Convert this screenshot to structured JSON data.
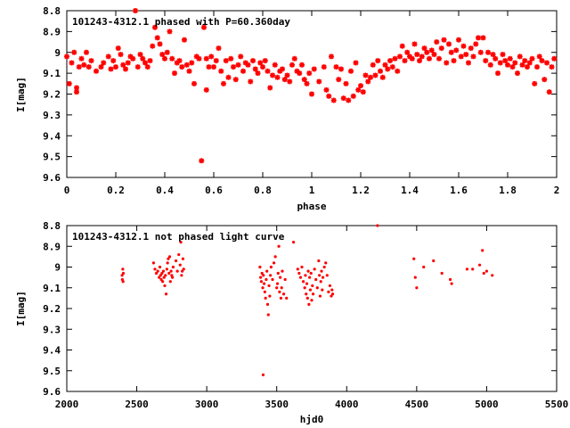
{
  "chart_data": [
    {
      "type": "scatter",
      "title": "101243-4312.1 phased with P=60.360day",
      "xlabel": "phase",
      "ylabel": "I[mag]",
      "xlim": [
        0,
        2
      ],
      "ylim": [
        9.6,
        8.8
      ],
      "y_inverted": true,
      "xticks": [
        0,
        0.2,
        0.4,
        0.6,
        0.8,
        1,
        1.2,
        1.4,
        1.6,
        1.8,
        2
      ],
      "xtick_labels": [
        "0",
        "0.2",
        "0.4",
        "0.6",
        "0.8",
        "1",
        "1.2",
        "1.4",
        "1.6",
        "1.8",
        "2"
      ],
      "yticks": [
        8.8,
        8.9,
        9,
        9.1,
        9.2,
        9.3,
        9.4,
        9.5,
        9.6
      ],
      "ytick_labels": [
        "8.8",
        "8.9",
        "9",
        "9.1",
        "9.2",
        "9.3",
        "9.4",
        "9.5",
        "9.6"
      ],
      "grid": false,
      "marker_color": "#ff0000",
      "marker": "star",
      "points": [
        [
          0.0,
          9.02
        ],
        [
          0.01,
          9.15
        ],
        [
          0.02,
          9.05
        ],
        [
          0.03,
          9.0
        ],
        [
          0.04,
          9.17
        ],
        [
          0.04,
          9.19
        ],
        [
          0.05,
          9.07
        ],
        [
          0.06,
          9.03
        ],
        [
          0.07,
          9.06
        ],
        [
          0.08,
          9.0
        ],
        [
          0.09,
          9.07
        ],
        [
          0.1,
          9.04
        ],
        [
          0.12,
          9.09
        ],
        [
          0.14,
          9.07
        ],
        [
          0.15,
          9.05
        ],
        [
          0.17,
          9.02
        ],
        [
          0.18,
          9.08
        ],
        [
          0.19,
          9.04
        ],
        [
          0.2,
          9.07
        ],
        [
          0.21,
          8.98
        ],
        [
          0.22,
          9.01
        ],
        [
          0.23,
          9.06
        ],
        [
          0.24,
          9.08
        ],
        [
          0.25,
          9.05
        ],
        [
          0.26,
          9.02
        ],
        [
          0.27,
          9.03
        ],
        [
          0.28,
          8.8
        ],
        [
          0.29,
          9.07
        ],
        [
          0.3,
          9.01
        ],
        [
          0.31,
          9.03
        ],
        [
          0.32,
          9.05
        ],
        [
          0.33,
          9.07
        ],
        [
          0.34,
          9.04
        ],
        [
          0.35,
          8.97
        ],
        [
          0.36,
          8.88
        ],
        [
          0.37,
          8.93
        ],
        [
          0.38,
          8.96
        ],
        [
          0.39,
          9.01
        ],
        [
          0.4,
          9.03
        ],
        [
          0.41,
          9.0
        ],
        [
          0.42,
          8.9
        ],
        [
          0.43,
          9.03
        ],
        [
          0.44,
          9.1
        ],
        [
          0.45,
          9.05
        ],
        [
          0.46,
          9.04
        ],
        [
          0.47,
          9.07
        ],
        [
          0.48,
          8.94
        ],
        [
          0.49,
          9.06
        ],
        [
          0.5,
          9.09
        ],
        [
          0.51,
          9.05
        ],
        [
          0.52,
          9.15
        ],
        [
          0.53,
          9.02
        ],
        [
          0.54,
          9.03
        ],
        [
          0.55,
          9.52
        ],
        [
          0.56,
          8.88
        ],
        [
          0.57,
          9.03
        ],
        [
          0.57,
          9.18
        ],
        [
          0.58,
          9.07
        ],
        [
          0.59,
          9.02
        ],
        [
          0.6,
          9.07
        ],
        [
          0.61,
          9.04
        ],
        [
          0.62,
          8.98
        ],
        [
          0.63,
          9.09
        ],
        [
          0.64,
          9.15
        ],
        [
          0.65,
          9.04
        ],
        [
          0.66,
          9.12
        ],
        [
          0.67,
          9.03
        ],
        [
          0.68,
          9.07
        ],
        [
          0.69,
          9.13
        ],
        [
          0.7,
          9.06
        ],
        [
          0.71,
          9.02
        ],
        [
          0.72,
          9.09
        ],
        [
          0.73,
          9.05
        ],
        [
          0.74,
          9.06
        ],
        [
          0.75,
          9.14
        ],
        [
          0.76,
          9.04
        ],
        [
          0.77,
          9.08
        ],
        [
          0.78,
          9.1
        ],
        [
          0.79,
          9.05
        ],
        [
          0.8,
          9.07
        ],
        [
          0.81,
          9.04
        ],
        [
          0.82,
          9.09
        ],
        [
          0.83,
          9.17
        ],
        [
          0.84,
          9.11
        ],
        [
          0.85,
          9.06
        ],
        [
          0.86,
          9.12
        ],
        [
          0.87,
          9.09
        ],
        [
          0.88,
          9.08
        ],
        [
          0.89,
          9.13
        ],
        [
          0.9,
          9.11
        ],
        [
          0.91,
          9.14
        ],
        [
          0.92,
          9.06
        ],
        [
          0.93,
          9.03
        ],
        [
          0.94,
          9.09
        ],
        [
          0.95,
          9.1
        ],
        [
          0.96,
          9.06
        ],
        [
          0.97,
          9.13
        ],
        [
          0.98,
          9.15
        ],
        [
          0.99,
          9.1
        ],
        [
          1.0,
          9.2
        ],
        [
          1.01,
          9.08
        ],
        [
          1.03,
          9.14
        ],
        [
          1.05,
          9.07
        ],
        [
          1.06,
          9.18
        ],
        [
          1.07,
          9.21
        ],
        [
          1.08,
          9.02
        ],
        [
          1.09,
          9.23
        ],
        [
          1.1,
          9.07
        ],
        [
          1.11,
          9.13
        ],
        [
          1.12,
          9.08
        ],
        [
          1.13,
          9.22
        ],
        [
          1.14,
          9.15
        ],
        [
          1.15,
          9.23
        ],
        [
          1.16,
          9.09
        ],
        [
          1.17,
          9.21
        ],
        [
          1.18,
          9.05
        ],
        [
          1.19,
          9.18
        ],
        [
          1.2,
          9.16
        ],
        [
          1.21,
          9.19
        ],
        [
          1.22,
          9.11
        ],
        [
          1.23,
          9.14
        ],
        [
          1.24,
          9.12
        ],
        [
          1.25,
          9.06
        ],
        [
          1.26,
          9.11
        ],
        [
          1.27,
          9.04
        ],
        [
          1.28,
          9.09
        ],
        [
          1.29,
          9.12
        ],
        [
          1.3,
          9.06
        ],
        [
          1.31,
          9.08
        ],
        [
          1.32,
          9.04
        ],
        [
          1.33,
          9.07
        ],
        [
          1.34,
          9.03
        ],
        [
          1.35,
          9.09
        ],
        [
          1.36,
          9.02
        ],
        [
          1.37,
          8.97
        ],
        [
          1.38,
          9.04
        ],
        [
          1.39,
          9.0
        ],
        [
          1.4,
          9.02
        ],
        [
          1.41,
          9.03
        ],
        [
          1.42,
          8.96
        ],
        [
          1.43,
          9.01
        ],
        [
          1.44,
          9.04
        ],
        [
          1.45,
          9.02
        ],
        [
          1.46,
          8.98
        ],
        [
          1.47,
          9.0
        ],
        [
          1.48,
          9.03
        ],
        [
          1.49,
          8.99
        ],
        [
          1.5,
          9.01
        ],
        [
          1.51,
          8.95
        ],
        [
          1.52,
          9.03
        ],
        [
          1.53,
          8.98
        ],
        [
          1.54,
          8.94
        ],
        [
          1.55,
          9.05
        ],
        [
          1.56,
          8.96
        ],
        [
          1.57,
          9.0
        ],
        [
          1.58,
          9.04
        ],
        [
          1.59,
          8.99
        ],
        [
          1.6,
          8.94
        ],
        [
          1.61,
          9.02
        ],
        [
          1.62,
          8.97
        ],
        [
          1.63,
          9.01
        ],
        [
          1.64,
          9.05
        ],
        [
          1.65,
          8.98
        ],
        [
          1.66,
          9.02
        ],
        [
          1.67,
          8.96
        ],
        [
          1.68,
          8.93
        ],
        [
          1.69,
          9.0
        ],
        [
          1.7,
          8.93
        ],
        [
          1.71,
          9.04
        ],
        [
          1.72,
          9.0
        ],
        [
          1.73,
          9.06
        ],
        [
          1.74,
          9.01
        ],
        [
          1.75,
          9.03
        ],
        [
          1.76,
          9.1
        ],
        [
          1.77,
          9.05
        ],
        [
          1.78,
          9.01
        ],
        [
          1.79,
          9.04
        ],
        [
          1.8,
          9.06
        ],
        [
          1.81,
          9.03
        ],
        [
          1.82,
          9.07
        ],
        [
          1.83,
          9.05
        ],
        [
          1.84,
          9.1
        ],
        [
          1.85,
          9.02
        ],
        [
          1.86,
          9.06
        ],
        [
          1.87,
          9.04
        ],
        [
          1.88,
          9.07
        ],
        [
          1.89,
          9.05
        ],
        [
          1.9,
          9.03
        ],
        [
          1.91,
          9.15
        ],
        [
          1.92,
          9.07
        ],
        [
          1.93,
          9.02
        ],
        [
          1.94,
          9.04
        ],
        [
          1.95,
          9.13
        ],
        [
          1.96,
          9.05
        ],
        [
          1.97,
          9.19
        ],
        [
          1.98,
          9.07
        ],
        [
          1.99,
          9.03
        ]
      ]
    },
    {
      "type": "scatter",
      "title": "101243-4312.1 not phased light curve",
      "xlabel": "hjd0",
      "ylabel": "I[mag]",
      "xlim": [
        2000,
        5500
      ],
      "ylim": [
        9.6,
        8.8
      ],
      "y_inverted": true,
      "xticks": [
        2000,
        2500,
        3000,
        3500,
        4000,
        4500,
        5000,
        5500
      ],
      "xtick_labels": [
        "2000",
        "2500",
        "3000",
        "3500",
        "4000",
        "4500",
        "5000",
        "5500"
      ],
      "yticks": [
        8.8,
        8.9,
        9,
        9.1,
        9.2,
        9.3,
        9.4,
        9.5,
        9.6
      ],
      "ytick_labels": [
        "8.8",
        "8.9",
        "9",
        "9.1",
        "9.2",
        "9.3",
        "9.4",
        "9.5",
        "9.6"
      ],
      "grid": false,
      "marker_color": "#ff0000",
      "marker": "dot",
      "points": [
        [
          2395,
          9.04
        ],
        [
          2397,
          9.06
        ],
        [
          2400,
          9.01
        ],
        [
          2402,
          9.07
        ],
        [
          2404,
          9.03
        ],
        [
          2620,
          8.98
        ],
        [
          2630,
          9.01
        ],
        [
          2640,
          9.03
        ],
        [
          2650,
          9.02
        ],
        [
          2660,
          9.05
        ],
        [
          2665,
          9.0
        ],
        [
          2670,
          9.04
        ],
        [
          2675,
          9.06
        ],
        [
          2680,
          9.03
        ],
        [
          2685,
          9.07
        ],
        [
          2690,
          9.02
        ],
        [
          2695,
          9.05
        ],
        [
          2700,
          9.09
        ],
        [
          2705,
          9.04
        ],
        [
          2710,
          9.13
        ],
        [
          2715,
          9.01
        ],
        [
          2720,
          8.98
        ],
        [
          2725,
          8.96
        ],
        [
          2730,
          9.03
        ],
        [
          2735,
          8.95
        ],
        [
          2740,
          9.07
        ],
        [
          2745,
          9.02
        ],
        [
          2750,
          9.04
        ],
        [
          2755,
          9.05
        ],
        [
          2760,
          9.0
        ],
        [
          2780,
          8.97
        ],
        [
          2790,
          9.02
        ],
        [
          2800,
          8.94
        ],
        [
          2810,
          8.99
        ],
        [
          2815,
          8.88
        ],
        [
          2820,
          9.04
        ],
        [
          2825,
          9.02
        ],
        [
          2830,
          8.96
        ],
        [
          2835,
          9.01
        ],
        [
          3380,
          9.0
        ],
        [
          3385,
          9.05
        ],
        [
          3390,
          9.07
        ],
        [
          3395,
          9.03
        ],
        [
          3400,
          9.1
        ],
        [
          3403,
          9.52
        ],
        [
          3405,
          9.04
        ],
        [
          3410,
          9.08
        ],
        [
          3415,
          9.12
        ],
        [
          3420,
          9.15
        ],
        [
          3425,
          9.06
        ],
        [
          3430,
          9.02
        ],
        [
          3435,
          9.18
        ],
        [
          3440,
          9.23
        ],
        [
          3445,
          9.09
        ],
        [
          3450,
          9.14
        ],
        [
          3455,
          9.04
        ],
        [
          3460,
          9.0
        ],
        [
          3470,
          9.06
        ],
        [
          3480,
          8.98
        ],
        [
          3490,
          8.95
        ],
        [
          3500,
          9.1
        ],
        [
          3505,
          9.08
        ],
        [
          3510,
          9.03
        ],
        [
          3515,
          8.9
        ],
        [
          3520,
          9.12
        ],
        [
          3525,
          9.05
        ],
        [
          3530,
          9.15
        ],
        [
          3535,
          9.1
        ],
        [
          3540,
          9.02
        ],
        [
          3550,
          9.13
        ],
        [
          3560,
          9.06
        ],
        [
          3570,
          9.15
        ],
        [
          3620,
          8.88
        ],
        [
          3650,
          9.01
        ],
        [
          3660,
          9.03
        ],
        [
          3670,
          9.05
        ],
        [
          3680,
          9.0
        ],
        [
          3690,
          9.07
        ],
        [
          3700,
          9.1
        ],
        [
          3705,
          9.04
        ],
        [
          3710,
          9.13
        ],
        [
          3715,
          9.08
        ],
        [
          3720,
          9.15
        ],
        [
          3725,
          9.02
        ],
        [
          3730,
          9.18
        ],
        [
          3735,
          9.05
        ],
        [
          3740,
          9.11
        ],
        [
          3745,
          9.03
        ],
        [
          3750,
          9.16
        ],
        [
          3755,
          9.09
        ],
        [
          3760,
          9.13
        ],
        [
          3770,
          9.01
        ],
        [
          3780,
          9.06
        ],
        [
          3790,
          9.1
        ],
        [
          3800,
          8.97
        ],
        [
          3805,
          9.04
        ],
        [
          3810,
          9.14
        ],
        [
          3815,
          9.07
        ],
        [
          3820,
          9.02
        ],
        [
          3825,
          9.11
        ],
        [
          3830,
          9.05
        ],
        [
          3840,
          9.0
        ],
        [
          3850,
          8.98
        ],
        [
          3860,
          9.04
        ],
        [
          3870,
          9.12
        ],
        [
          3880,
          9.09
        ],
        [
          3890,
          9.14
        ],
        [
          3895,
          9.11
        ],
        [
          3900,
          9.13
        ],
        [
          4220,
          8.8
        ],
        [
          4480,
          8.96
        ],
        [
          4490,
          9.05
        ],
        [
          4500,
          9.1
        ],
        [
          4550,
          9.0
        ],
        [
          4620,
          8.97
        ],
        [
          4680,
          9.03
        ],
        [
          4740,
          9.06
        ],
        [
          4750,
          9.08
        ],
        [
          4860,
          9.01
        ],
        [
          4900,
          9.01
        ],
        [
          4950,
          8.99
        ],
        [
          4970,
          8.92
        ],
        [
          4980,
          9.03
        ],
        [
          5000,
          9.02
        ],
        [
          5040,
          9.04
        ]
      ]
    }
  ]
}
